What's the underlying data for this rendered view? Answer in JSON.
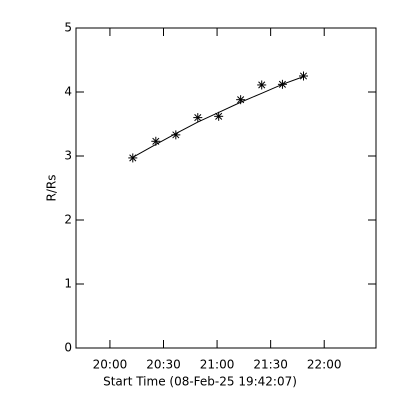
{
  "chart_data": {
    "type": "scatter",
    "x_label": "Start Time (08-Feb-25 19:42:07)",
    "y_label": "R/Rs",
    "x": [
      1212.8,
      1225.7,
      1236.9,
      1249.2,
      1260.9,
      1273.2,
      1285.0,
      1296.6,
      1308.4
    ],
    "series": [
      {
        "marker": "asterisk",
        "color": "#000000",
        "values": [
          2.97,
          3.23,
          3.33,
          3.6,
          3.62,
          3.88,
          4.11,
          4.12,
          4.25
        ]
      },
      {
        "style": "line",
        "color": "#000000",
        "values": [
          2.98,
          3.18,
          3.35,
          3.53,
          3.68,
          3.84,
          3.98,
          4.12,
          4.24
        ]
      }
    ],
    "xlim": [
      1181,
      1349
    ],
    "xticks": [
      {
        "value": 1200,
        "label": "20:00"
      },
      {
        "value": 1230,
        "label": "20:30"
      },
      {
        "value": 1260,
        "label": "21:00"
      },
      {
        "value": 1290,
        "label": "21:30"
      },
      {
        "value": 1320,
        "label": "22:00"
      }
    ],
    "ylim": [
      0,
      5
    ],
    "yticks": [
      0,
      1,
      2,
      3,
      4,
      5
    ]
  }
}
